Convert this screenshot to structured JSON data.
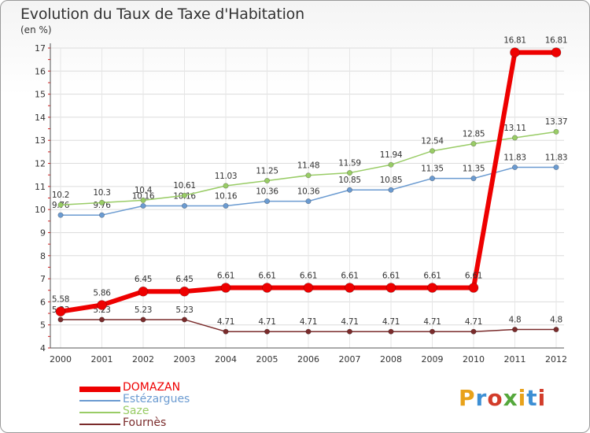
{
  "title": "Evolution du Taux de Taxe d'Habitation",
  "unit_label": "(en %)",
  "logo": {
    "text": "Proxiti",
    "colors": [
      "#e8a21a",
      "#3d8fd4",
      "#d23c2a",
      "#55a83c",
      "#e8a21a",
      "#3d8fd4",
      "#d23c2a"
    ]
  },
  "chart_data": {
    "type": "line",
    "title": "Evolution du Taux de Taxe d'Habitation",
    "ylabel": "(en %)",
    "xlabel": "",
    "x": [
      "2000",
      "2001",
      "2002",
      "2003",
      "2004",
      "2005",
      "2006",
      "2007",
      "2008",
      "2009",
      "2010",
      "2011",
      "2012"
    ],
    "ylim": [
      4,
      17
    ],
    "yticks": [
      "4",
      "5",
      "6",
      "7",
      "8",
      "9",
      "10",
      "11",
      "12",
      "13",
      "14",
      "15",
      "16",
      "17"
    ],
    "grid": true,
    "legend": "bottom-left",
    "series": [
      {
        "name": "DOMAZAN",
        "color": "#ee0000",
        "values": [
          5.58,
          5.86,
          6.45,
          6.45,
          6.61,
          6.61,
          6.61,
          6.61,
          6.61,
          6.61,
          6.61,
          16.81,
          16.81
        ],
        "labels": [
          "5.58",
          "5.86",
          "6.45",
          "6.45",
          "6.61",
          "6.61",
          "6.61",
          "6.61",
          "6.61",
          "6.61",
          "6.61",
          "16.81",
          "16.81"
        ]
      },
      {
        "name": "Estézargues",
        "color": "#6b9bd1",
        "values": [
          9.76,
          9.76,
          10.16,
          10.16,
          10.16,
          10.36,
          10.36,
          10.85,
          10.85,
          11.35,
          11.35,
          11.83,
          11.83
        ],
        "labels": [
          "9.76",
          "9.76",
          "10.16",
          "10.16",
          "10.16",
          "10.36",
          "10.36",
          "10.85",
          "10.85",
          "11.35",
          "11.35",
          "11.83",
          "11.83"
        ]
      },
      {
        "name": "Saze",
        "color": "#99cc66",
        "values": [
          10.2,
          10.3,
          10.4,
          10.61,
          11.03,
          11.25,
          11.48,
          11.59,
          11.94,
          12.54,
          12.85,
          13.11,
          13.37
        ],
        "labels": [
          "10.2",
          "10.3",
          "10.4",
          "10.61",
          "11.03",
          "11.25",
          "11.48",
          "11.59",
          "11.94",
          "12.54",
          "12.85",
          "13.11",
          "13.37"
        ]
      },
      {
        "name": "Fournès",
        "color": "#7a2b2b",
        "values": [
          5.23,
          5.23,
          5.23,
          5.23,
          4.71,
          4.71,
          4.71,
          4.71,
          4.71,
          4.71,
          4.71,
          4.8,
          4.8
        ],
        "labels": [
          "5.23",
          "5.23",
          "5.23",
          "5.23",
          "4.71",
          "4.71",
          "4.71",
          "4.71",
          "4.71",
          "4.71",
          "4.71",
          "4.8",
          "4.8"
        ]
      }
    ]
  }
}
